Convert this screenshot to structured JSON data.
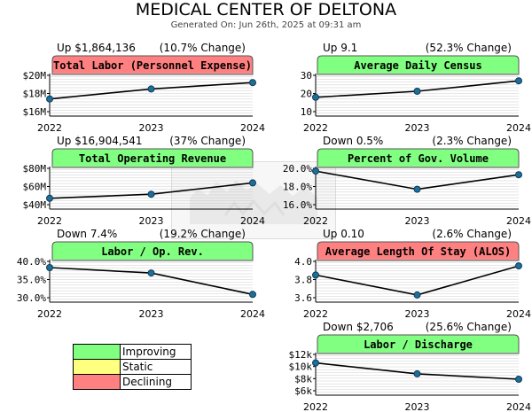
{
  "page": {
    "title": "MEDICAL CENTER OF DELTONA",
    "subtitle": "Generated On: Jun 26th, 2025 at 09:31 am"
  },
  "legend": [
    {
      "label": "Improving",
      "color": "#80ff80"
    },
    {
      "label": "Static",
      "color": "#ffff80"
    },
    {
      "label": "Declining",
      "color": "#ff8080"
    }
  ],
  "colors": {
    "improving": "#80ff80",
    "declining": "#ff8080",
    "line": "#000000",
    "marker": "#1e6e9a",
    "grid": "#cccccc"
  },
  "chart_data": [
    {
      "type": "line",
      "title": "Total Labor (Personnel Expense)",
      "status": "declining",
      "change": "Up $1,864,136",
      "pct_change": "(10.7% Change)",
      "categories": [
        "2022",
        "2023",
        "2024"
      ],
      "values": [
        17.4,
        18.5,
        19.2
      ],
      "ylim": [
        16,
        20
      ],
      "yticks": [
        {
          "v": 20,
          "label": "$20M"
        },
        {
          "v": 18,
          "label": "$18M"
        },
        {
          "v": 16,
          "label": "$16M"
        }
      ]
    },
    {
      "type": "line",
      "title": "Average Daily Census",
      "status": "improving",
      "change": "Up 9.1",
      "pct_change": "(52.3% Change)",
      "categories": [
        "2022",
        "2023",
        "2024"
      ],
      "values": [
        17.9,
        21.2,
        27.0
      ],
      "ylim": [
        10,
        30
      ],
      "yticks": [
        {
          "v": 30,
          "label": "30"
        },
        {
          "v": 20,
          "label": "20"
        },
        {
          "v": 10,
          "label": "10"
        }
      ]
    },
    {
      "type": "line",
      "title": "Total Operating Revenue",
      "status": "improving",
      "change": "Up $16,904,541",
      "pct_change": "(37% Change)",
      "categories": [
        "2022",
        "2023",
        "2024"
      ],
      "values": [
        47.0,
        51.5,
        64.0
      ],
      "ylim": [
        40,
        80
      ],
      "yticks": [
        {
          "v": 80,
          "label": "$80M"
        },
        {
          "v": 60,
          "label": "$60M"
        },
        {
          "v": 40,
          "label": "$40M"
        }
      ]
    },
    {
      "type": "line",
      "title": "Percent of Gov. Volume",
      "status": "improving",
      "change": "Down 0.5%",
      "pct_change": "(2.3% Change)",
      "categories": [
        "2022",
        "2023",
        "2024"
      ],
      "values": [
        19.7,
        17.7,
        19.3
      ],
      "ylim": [
        16,
        20
      ],
      "yticks": [
        {
          "v": 20,
          "label": "20.0%"
        },
        {
          "v": 18,
          "label": "18.0%"
        },
        {
          "v": 16,
          "label": "16.0%"
        }
      ]
    },
    {
      "type": "line",
      "title": "Labor / Op. Rev.",
      "status": "improving",
      "change": "Down 7.4%",
      "pct_change": "(19.2% Change)",
      "categories": [
        "2022",
        "2023",
        "2024"
      ],
      "values": [
        38.3,
        36.8,
        30.9
      ],
      "ylim": [
        30,
        40
      ],
      "yticks": [
        {
          "v": 40,
          "label": "40.0%"
        },
        {
          "v": 35,
          "label": "35.0%"
        },
        {
          "v": 30,
          "label": "30.0%"
        }
      ]
    },
    {
      "type": "line",
      "title": "Average Length Of Stay (ALOS)",
      "status": "declining",
      "change": "Up 0.10",
      "pct_change": "(2.6% Change)",
      "categories": [
        "2022",
        "2023",
        "2024"
      ],
      "values": [
        3.85,
        3.63,
        3.95
      ],
      "ylim": [
        3.6,
        4.0
      ],
      "yticks": [
        {
          "v": 4.0,
          "label": "4.0"
        },
        {
          "v": 3.8,
          "label": "3.8"
        },
        {
          "v": 3.6,
          "label": "3.6"
        }
      ]
    },
    {
      "type": "line",
      "title": "Labor / Discharge",
      "status": "improving",
      "change": "Down $2,706",
      "pct_change": "(25.6% Change)",
      "categories": [
        "2022",
        "2023",
        "2024"
      ],
      "values": [
        10.6,
        8.8,
        7.9
      ],
      "ylim": [
        6,
        12
      ],
      "yticks": [
        {
          "v": 12,
          "label": "$12k"
        },
        {
          "v": 10,
          "label": "$10k"
        },
        {
          "v": 8,
          "label": "$8k"
        },
        {
          "v": 6,
          "label": "$6k"
        }
      ]
    }
  ]
}
